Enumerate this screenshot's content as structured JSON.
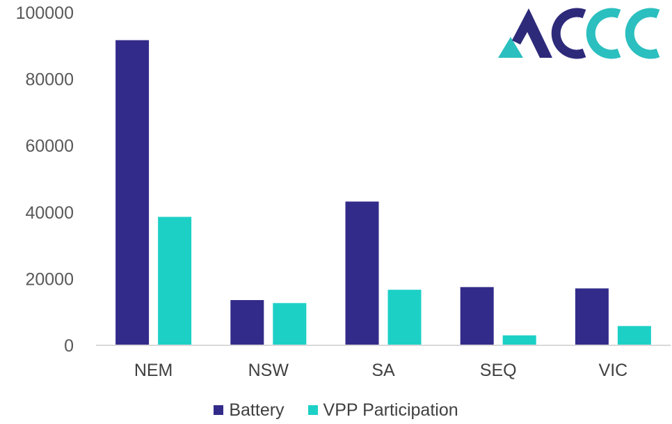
{
  "colors": {
    "battery": "#332b8a",
    "vpp": "#1dd0c6",
    "axis": "#d9d9d9",
    "logo_navy": "#2e2a7a",
    "logo_teal": "#2bbfbf"
  },
  "logo": {
    "text": "ACCC"
  },
  "chart_data": {
    "type": "bar",
    "categories": [
      "NEM",
      "NSW",
      "SA",
      "SEQ",
      "VIC"
    ],
    "series": [
      {
        "name": "Battery",
        "values": [
          91700,
          13600,
          43200,
          17500,
          17100
        ]
      },
      {
        "name": "VPP Participation",
        "values": [
          38600,
          12700,
          16700,
          3000,
          5800
        ]
      }
    ],
    "yticks": [
      "0",
      "20000",
      "40000",
      "60000",
      "80000",
      "100000"
    ],
    "ylim": [
      0,
      100000
    ],
    "title": "",
    "xlabel": "",
    "ylabel": "",
    "legend": "bottom",
    "grid": false
  }
}
